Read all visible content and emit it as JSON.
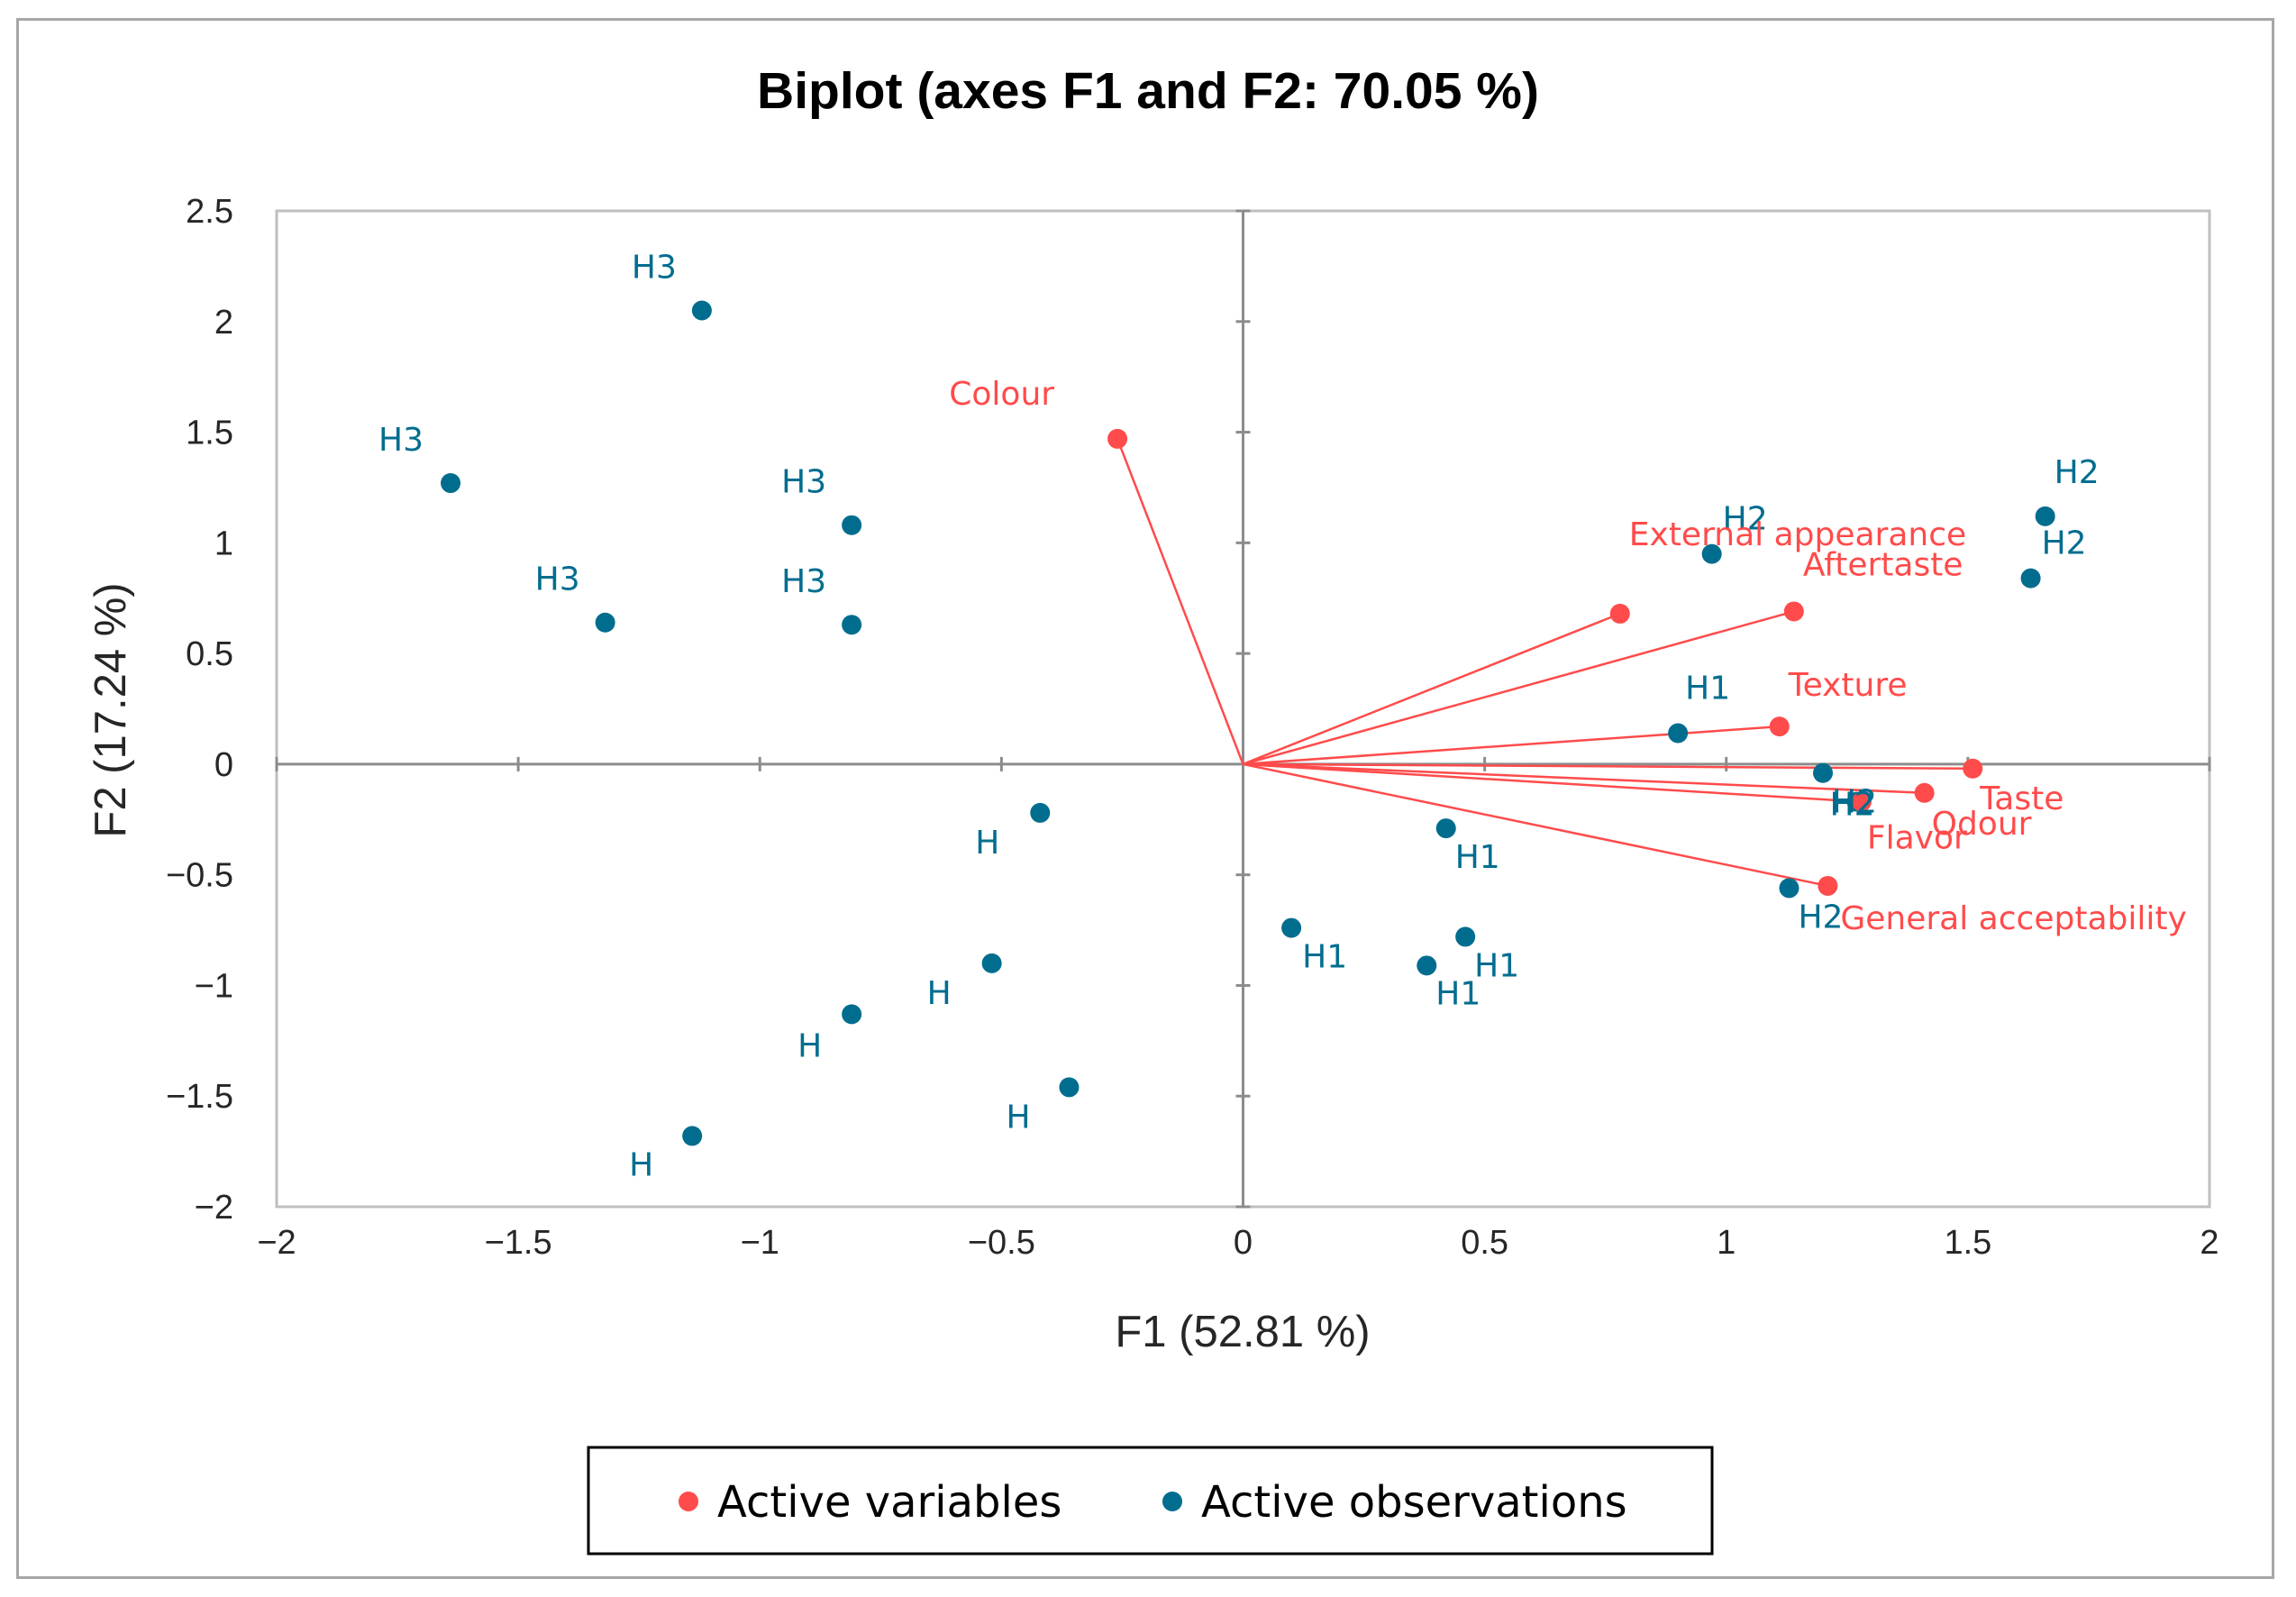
{
  "colors": {
    "variables": "#ff4b4b",
    "observations": "#006d8f",
    "axis": "#8c8c8c",
    "text": "#262626"
  },
  "chart_data": {
    "type": "scatter",
    "subtype": "biplot",
    "title": "Biplot (axes F1 and F2: 70.05 %)",
    "xlabel": "F1 (52.81 %)",
    "ylabel": "F2 (17.24 %)",
    "xlim": [
      -2,
      2
    ],
    "ylim": [
      -2,
      2.5
    ],
    "xticks": [
      -2,
      -1.5,
      -1,
      -0.5,
      0,
      0.5,
      1,
      1.5,
      2
    ],
    "xtick_labels": [
      "−2",
      "−1.5",
      "−1",
      "−0.5",
      "0",
      "0.5",
      "1",
      "1.5",
      "2"
    ],
    "yticks": [
      2.5,
      2,
      1.5,
      1,
      0.5,
      0,
      -0.5,
      -1,
      -1.5,
      -2
    ],
    "ytick_labels": [
      "2.5",
      "2",
      "1.5",
      "1",
      "0.5",
      "0",
      "−0.5",
      "−1",
      "−1.5",
      "−2"
    ],
    "legend": {
      "position": "bottom",
      "entries": [
        "Active variables",
        "Active observations"
      ]
    },
    "series": [
      {
        "name": "Active variables",
        "color": "#ff4b4b",
        "points": [
          {
            "label": "Colour",
            "x": -0.26,
            "y": 1.47
          },
          {
            "label": "External appearance",
            "x": 0.78,
            "y": 0.68
          },
          {
            "label": "Aftertaste",
            "x": 1.14,
            "y": 0.69
          },
          {
            "label": "Texture",
            "x": 1.11,
            "y": 0.17
          },
          {
            "label": "Taste",
            "x": 1.51,
            "y": -0.02
          },
          {
            "label": "Odour",
            "x": 1.41,
            "y": -0.13
          },
          {
            "label": "Flavor",
            "x": 1.28,
            "y": -0.17
          },
          {
            "label": "General acceptability",
            "x": 1.21,
            "y": -0.55
          }
        ]
      },
      {
        "name": "Active observations",
        "color": "#006d8f",
        "points": [
          {
            "label": "H3",
            "x": -1.12,
            "y": 2.05
          },
          {
            "label": "H3",
            "x": -1.64,
            "y": 1.27
          },
          {
            "label": "H3",
            "x": -0.81,
            "y": 1.08
          },
          {
            "label": "H3",
            "x": -1.32,
            "y": 0.64
          },
          {
            "label": "H3",
            "x": -0.81,
            "y": 0.63
          },
          {
            "label": "H",
            "x": -0.42,
            "y": -0.22
          },
          {
            "label": "H",
            "x": -0.52,
            "y": -0.9
          },
          {
            "label": "H",
            "x": -0.81,
            "y": -1.13
          },
          {
            "label": "H",
            "x": -0.36,
            "y": -1.46
          },
          {
            "label": "H",
            "x": -1.14,
            "y": -1.68
          },
          {
            "label": "H1",
            "x": 0.9,
            "y": 0.14
          },
          {
            "label": "H1",
            "x": 0.42,
            "y": -0.29
          },
          {
            "label": "H1",
            "x": 0.1,
            "y": -0.74
          },
          {
            "label": "H1",
            "x": 0.46,
            "y": -0.78
          },
          {
            "label": "H1",
            "x": 0.38,
            "y": -0.91
          },
          {
            "label": "H2",
            "x": 0.97,
            "y": 0.95
          },
          {
            "label": "H2",
            "x": 1.66,
            "y": 1.12
          },
          {
            "label": "H2",
            "x": 1.63,
            "y": 0.84
          },
          {
            "label": "H2",
            "x": 1.2,
            "y": -0.04
          },
          {
            "label": "H2",
            "x": 1.27,
            "y": -0.17
          },
          {
            "label": "H2",
            "x": 1.13,
            "y": -0.56
          }
        ]
      }
    ]
  }
}
